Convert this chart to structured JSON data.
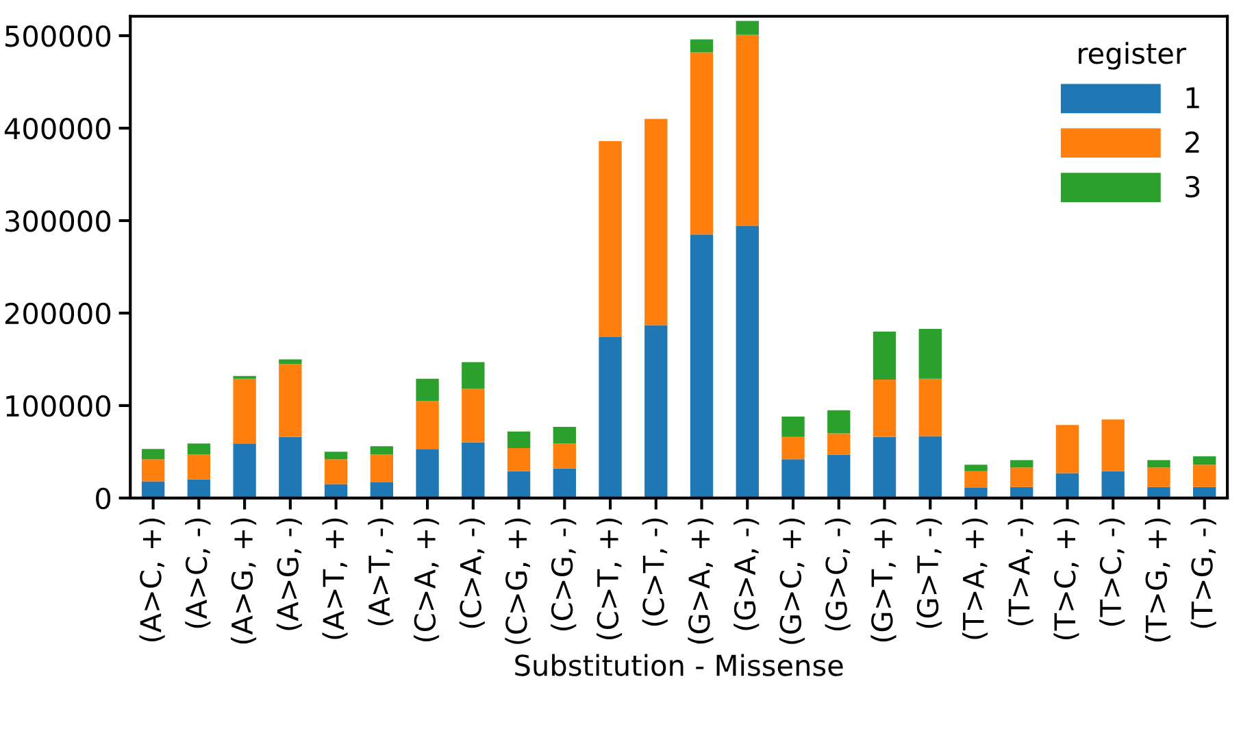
{
  "chart_data": {
    "type": "bar",
    "stacked": true,
    "xlabel": "Substitution - Missense",
    "legend_title": "register",
    "legend": "top right",
    "grid": false,
    "categories": [
      "(A>C, +)",
      "(A>C, -)",
      "(A>G, +)",
      "(A>G, -)",
      "(A>T, +)",
      "(A>T, -)",
      "(C>A, +)",
      "(C>A, -)",
      "(C>G, +)",
      "(C>G, -)",
      "(C>T, +)",
      "(C>T, -)",
      "(G>A, +)",
      "(G>A, -)",
      "(G>C, +)",
      "(G>C, -)",
      "(G>T, +)",
      "(G>T, -)",
      "(T>A, +)",
      "(T>A, -)",
      "(T>C, +)",
      "(T>C, -)",
      "(T>G, +)",
      "(T>G, -)"
    ],
    "series": [
      {
        "name": "1",
        "color": "#1f77b4",
        "values": [
          18000,
          20000,
          59000,
          66000,
          15000,
          17000,
          53000,
          60000,
          29000,
          32000,
          174000,
          187000,
          285000,
          294000,
          42000,
          47000,
          66000,
          67000,
          11000,
          12000,
          27000,
          29000,
          12000,
          12000
        ]
      },
      {
        "name": "2",
        "color": "#ff7f0e",
        "values": [
          24000,
          27000,
          70000,
          79000,
          27000,
          30000,
          52000,
          58000,
          25000,
          27000,
          212000,
          223000,
          197000,
          207000,
          24000,
          23000,
          62000,
          62000,
          18000,
          21000,
          52000,
          56000,
          21000,
          24000
        ]
      },
      {
        "name": "3",
        "color": "#2ca02c",
        "values": [
          11000,
          12000,
          3000,
          5000,
          8000,
          9000,
          24000,
          29000,
          18000,
          18000,
          0,
          0,
          14000,
          15000,
          22000,
          25000,
          52000,
          54000,
          7000,
          8000,
          0,
          0,
          8000,
          9000
        ]
      }
    ],
    "ylim": [
      0,
      521000
    ],
    "yticks": [
      0,
      100000,
      200000,
      300000,
      400000,
      500000
    ]
  }
}
